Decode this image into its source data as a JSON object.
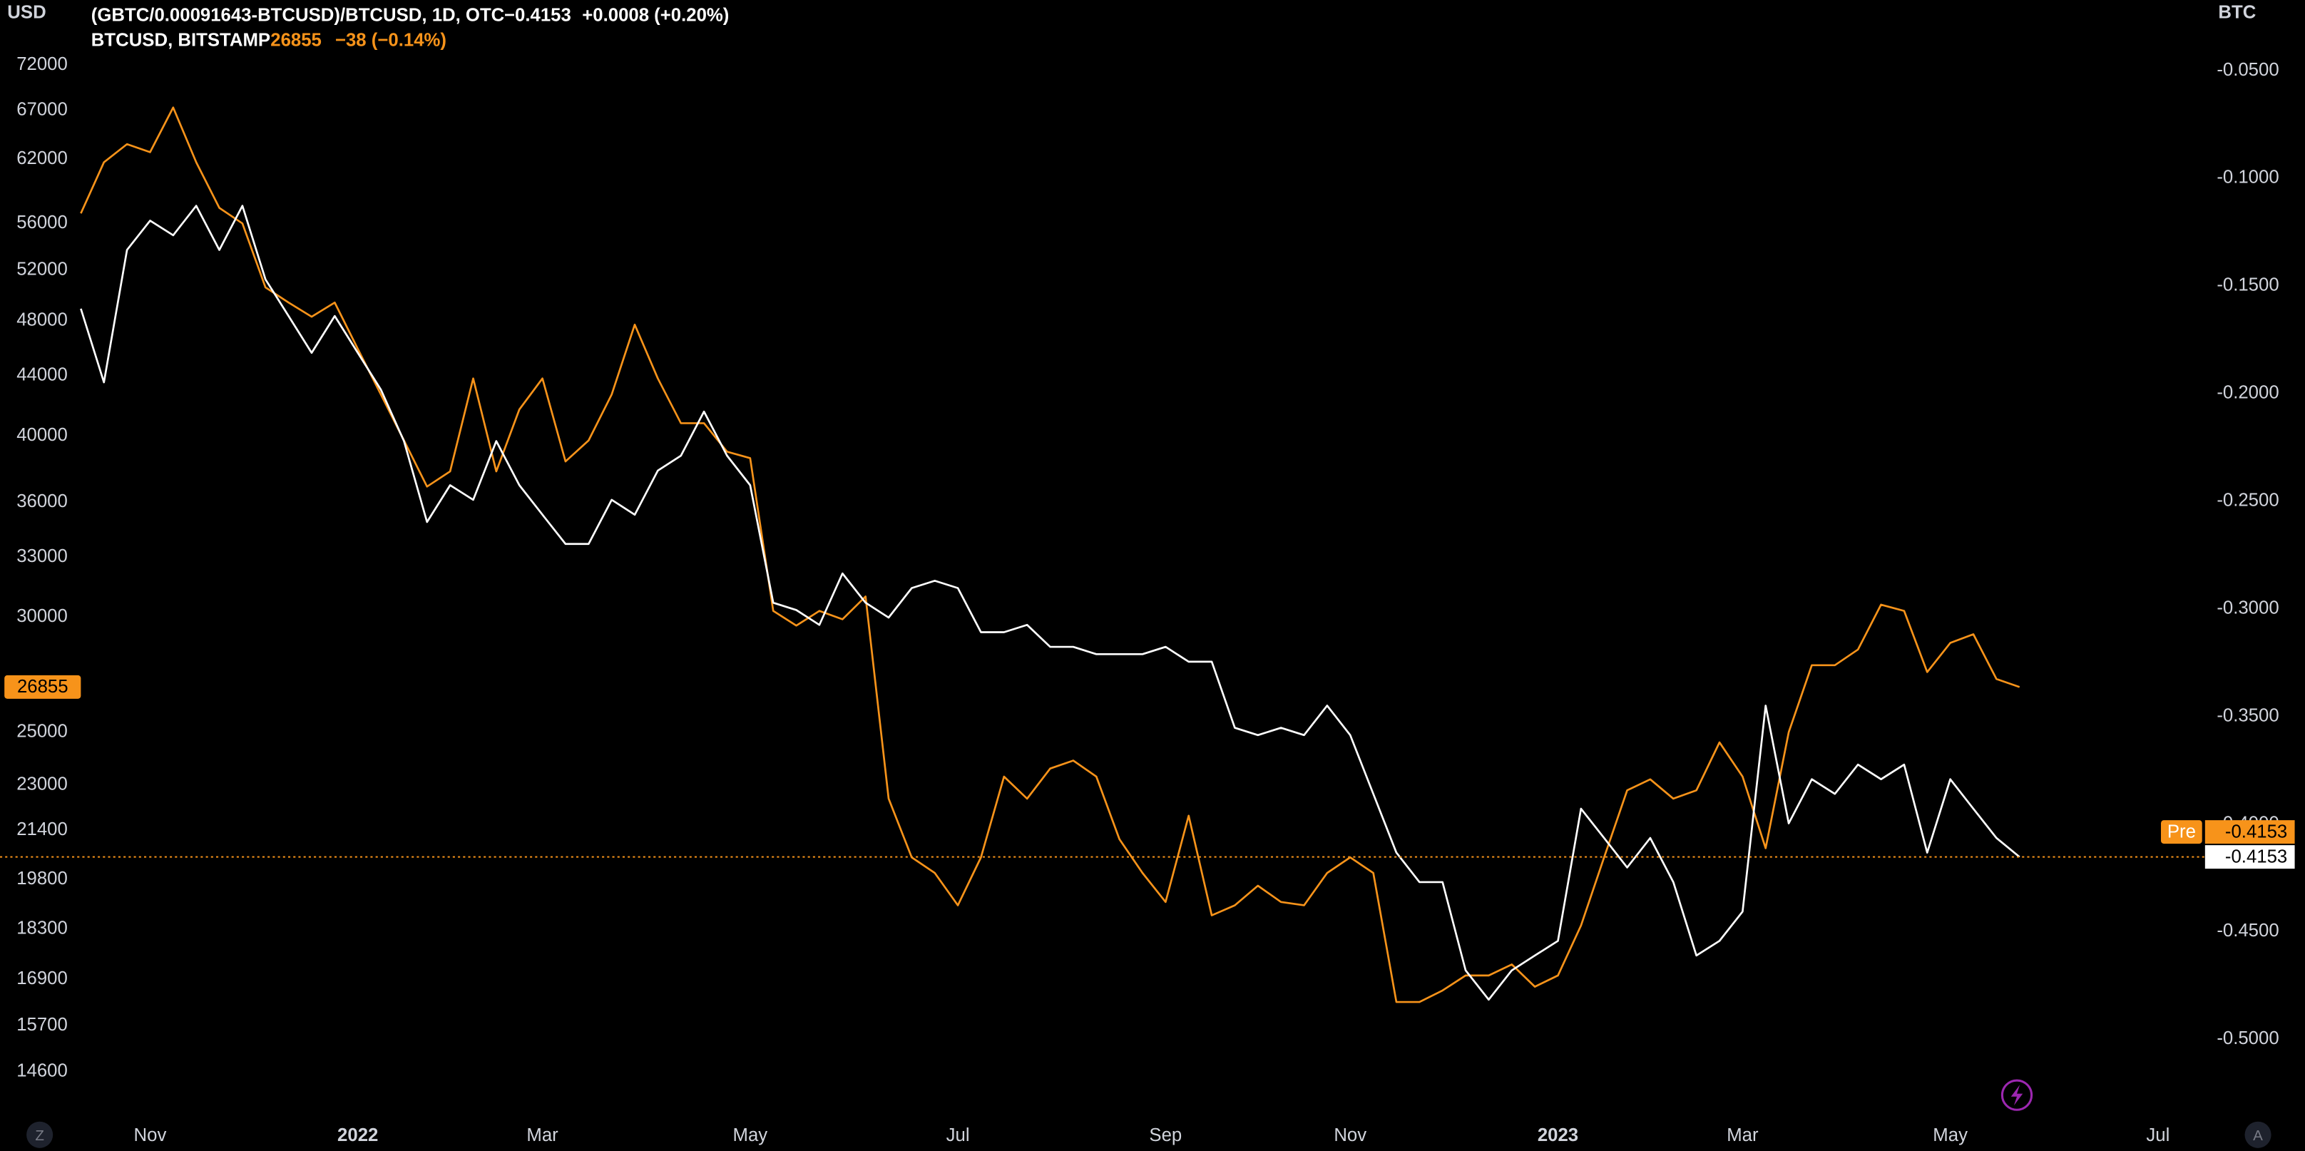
{
  "chart_data": {
    "type": "line",
    "yunit": "USD",
    "y2unit": "BTC",
    "log_y": true,
    "categories": [
      null,
      null,
      null,
      "Nov",
      null,
      null,
      null,
      null,
      null,
      null,
      null,
      null,
      "2022",
      null,
      null,
      null,
      null,
      null,
      null,
      null,
      "Mar",
      null,
      null,
      null,
      null,
      null,
      null,
      null,
      null,
      "May",
      null,
      null,
      null,
      null,
      null,
      null,
      null,
      null,
      "Jul",
      null,
      null,
      null,
      null,
      null,
      null,
      null,
      null,
      "Sep",
      null,
      null,
      null,
      null,
      null,
      null,
      null,
      "Nov",
      null,
      null,
      null,
      null,
      null,
      null,
      null,
      null,
      "2023",
      null,
      null,
      null,
      null,
      null,
      null,
      null,
      "Mar",
      null,
      null,
      null,
      null,
      null,
      null,
      null,
      null,
      "May",
      null,
      null,
      null,
      null,
      null,
      null,
      null,
      null,
      "Jul",
      null,
      null
    ],
    "series": [
      {
        "name": "BTCUSD, BITSTAMP",
        "color": "#f7931a",
        "axis": "y",
        "values": [
          56900,
          61700,
          63500,
          62700,
          67300,
          61700,
          57400,
          56000,
          50600,
          49400,
          48300,
          49400,
          45900,
          42700,
          39700,
          36900,
          37800,
          43800,
          37800,
          41700,
          43800,
          38400,
          39700,
          42700,
          47700,
          43800,
          40800,
          40800,
          39000,
          38600,
          30300,
          29600,
          30300,
          29900,
          31000,
          22500,
          20500,
          20000,
          19000,
          20500,
          23300,
          22500,
          23600,
          23900,
          23300,
          21100,
          20000,
          19100,
          21900,
          18700,
          19000,
          19600,
          19100,
          19000,
          20000,
          20500,
          20000,
          16300,
          16300,
          16600,
          17000,
          17000,
          17300,
          16700,
          17000,
          18400,
          20500,
          22800,
          23200,
          22500,
          22800,
          24600,
          23300,
          20800,
          25000,
          27800,
          27800,
          28500,
          30600,
          30300,
          27500,
          28800,
          29200,
          27200,
          26855,
          null,
          null,
          null,
          null,
          null,
          null,
          null,
          null
        ]
      },
      {
        "name": "(GBTC/0.00091643-BTCUSD)/BTCUSD, 1D, OTC",
        "color": "#ffffff",
        "axis": "y2",
        "values": [
          -0.1606,
          -0.1948,
          -0.1333,
          -0.1197,
          -0.1265,
          -0.1128,
          -0.1333,
          -0.1128,
          -0.147,
          -0.164,
          -0.1811,
          -0.164,
          -0.1811,
          -0.1982,
          -0.2221,
          -0.2597,
          -0.2426,
          -0.2494,
          -0.2221,
          -0.2426,
          -0.2563,
          -0.2699,
          -0.2699,
          -0.2494,
          -0.2563,
          -0.2358,
          -0.2289,
          -0.2084,
          -0.2289,
          -0.2426,
          -0.2972,
          -0.3006,
          -0.3075,
          -0.2836,
          -0.2972,
          -0.3041,
          -0.2904,
          -0.287,
          -0.2904,
          -0.3109,
          -0.3109,
          -0.3075,
          -0.3177,
          -0.3177,
          -0.3211,
          -0.3211,
          -0.3211,
          -0.3177,
          -0.3246,
          -0.3246,
          -0.3553,
          -0.3587,
          -0.3553,
          -0.3587,
          -0.345,
          -0.3587,
          -0.386,
          -0.4133,
          -0.427,
          -0.427,
          -0.468,
          -0.4816,
          -0.468,
          -0.4611,
          -0.4543,
          -0.3929,
          -0.4065,
          -0.4202,
          -0.4065,
          -0.427,
          -0.4611,
          -0.4543,
          -0.4407,
          -0.345,
          -0.3997,
          -0.3792,
          -0.386,
          -0.3724,
          -0.3792,
          -0.3724,
          -0.4133,
          -0.3792,
          -0.3929,
          -0.4065,
          -0.4153,
          null,
          null,
          null,
          null,
          null,
          null,
          null,
          null
        ]
      }
    ],
    "legend": [
      {
        "value_label": "−0.4153",
        "change": "+0.0008 (+0.20%)"
      },
      {
        "change": "−38 (−0.14%)"
      }
    ],
    "ylim": [
      13580,
      79800
    ],
    "yticks": [
      14600,
      15700,
      16900,
      18300,
      19800,
      21400,
      23000,
      25000,
      30000,
      33000,
      36000,
      40000,
      44000,
      48000,
      52000,
      56000,
      62000,
      67000,
      72000
    ],
    "y2lim": [
      -0.5362,
      -0.0172
    ],
    "y2ticks": [
      {
        "value": -0.05,
        "label": "-0.0500"
      },
      {
        "value": -0.1,
        "label": "-0.1000"
      },
      {
        "value": -0.15,
        "label": "-0.1500"
      },
      {
        "value": -0.2,
        "label": "-0.2000"
      },
      {
        "value": -0.25,
        "label": "-0.2500"
      },
      {
        "value": -0.3,
        "label": "-0.3000"
      },
      {
        "value": -0.35,
        "label": "-0.3500"
      },
      {
        "value": -0.4,
        "label": "-0.4000"
      },
      {
        "value": -0.45,
        "label": "-0.4500"
      },
      {
        "value": -0.5,
        "label": "-0.5000"
      }
    ],
    "premarket_label": "Pre",
    "buttons": [
      "Z",
      "A"
    ]
  }
}
